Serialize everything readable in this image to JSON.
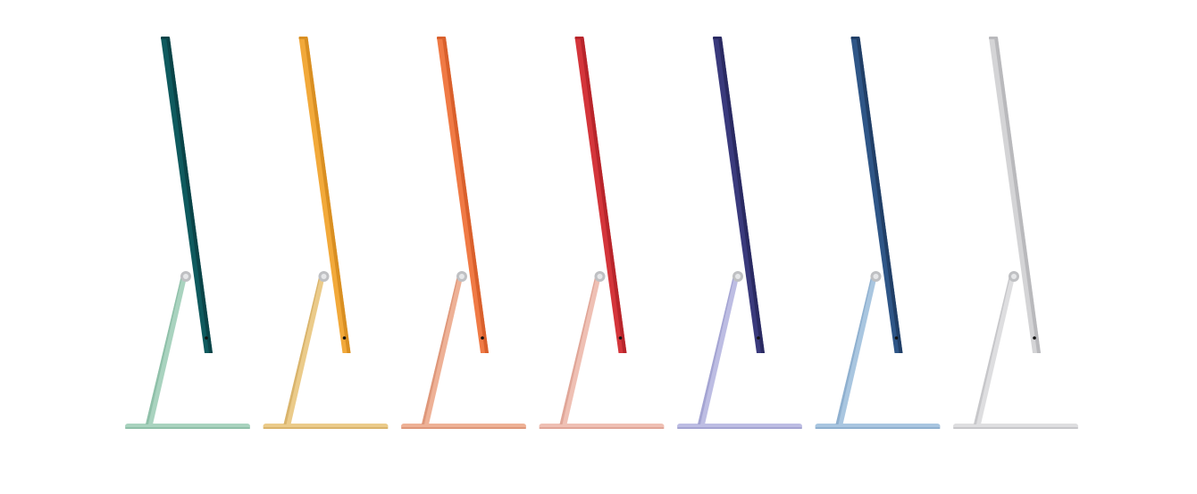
{
  "imacs": [
    {
      "color_name": "green",
      "panel": "#0f5a5e",
      "panel_edge": "#0a4448",
      "stand": "#a9d3bf",
      "stand_edge": "#8fc0a9"
    },
    {
      "color_name": "yellow",
      "panel": "#f2a93a",
      "panel_edge": "#d98f22",
      "stand": "#ebcb8a",
      "stand_edge": "#d9b46c"
    },
    {
      "color_name": "orange",
      "panel": "#f07a45",
      "panel_edge": "#d9602c",
      "stand": "#eeb196",
      "stand_edge": "#de977a"
    },
    {
      "color_name": "pink",
      "panel": "#d4353b",
      "panel_edge": "#b8252b",
      "stand": "#efc0b4",
      "stand_edge": "#e0a698"
    },
    {
      "color_name": "purple",
      "panel": "#3a3a7c",
      "panel_edge": "#2a2a62",
      "stand": "#bdbde3",
      "stand_edge": "#a4a4d2"
    },
    {
      "color_name": "blue",
      "panel": "#2f5687",
      "panel_edge": "#213f67",
      "stand": "#a9c6e0",
      "stand_edge": "#8fb0cf"
    },
    {
      "color_name": "silver",
      "panel": "#d4d4d6",
      "panel_edge": "#b9b9bc",
      "stand": "#dedee0",
      "stand_edge": "#c7c7ca"
    }
  ],
  "hinge_color": "#bfc0c3",
  "port_color": "#111111",
  "background": "#ffffff"
}
